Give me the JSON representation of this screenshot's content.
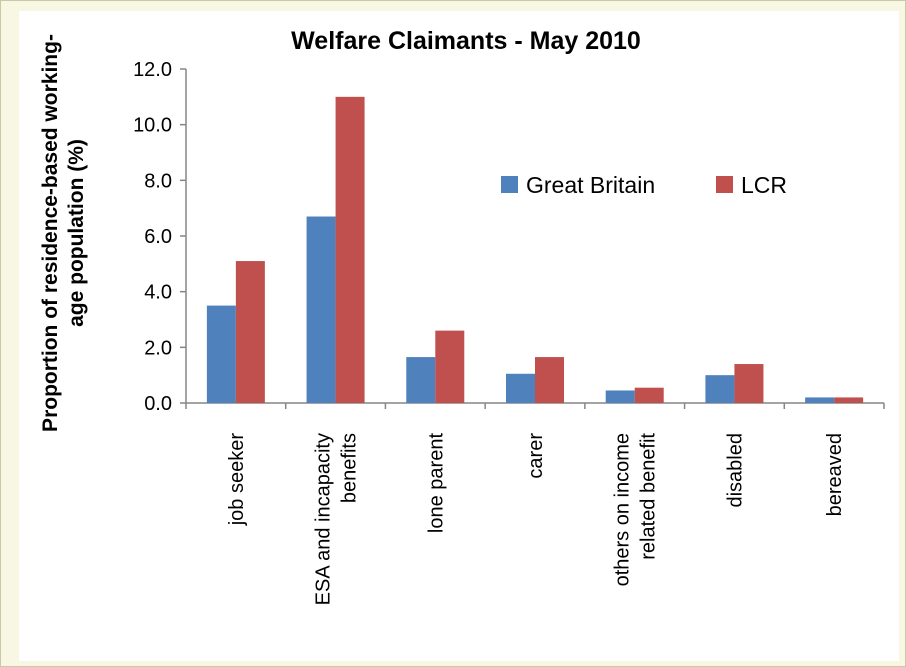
{
  "chart_data": {
    "type": "bar",
    "title": "Welfare Claimants - May 2010",
    "xlabel": "",
    "ylabel": [
      "Proportion of residence-based working-",
      "age population (%)"
    ],
    "ylim": [
      0,
      12
    ],
    "yticks": [
      "0.0",
      "2.0",
      "4.0",
      "6.0",
      "8.0",
      "10.0",
      "12.0"
    ],
    "categories": [
      [
        "job seeker"
      ],
      [
        "ESA and incapacity",
        "benefits"
      ],
      [
        "lone parent"
      ],
      [
        "carer"
      ],
      [
        "others on income",
        "related benefit"
      ],
      [
        "disabled"
      ],
      [
        "bereaved"
      ]
    ],
    "series": [
      {
        "name": "Great Britain",
        "color": "#4f81bd",
        "values": [
          3.5,
          6.7,
          1.65,
          1.05,
          0.45,
          1.0,
          0.2
        ]
      },
      {
        "name": "LCR",
        "color": "#c0504d",
        "values": [
          5.1,
          11.0,
          2.6,
          1.65,
          0.55,
          1.4,
          0.2
        ]
      }
    ],
    "legend": "right, inside plot",
    "grid": false
  }
}
